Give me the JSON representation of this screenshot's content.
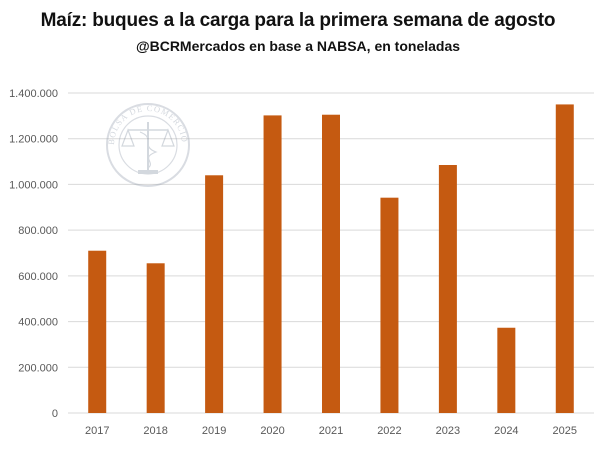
{
  "chart_data": {
    "type": "bar",
    "title": "Maíz: buques a la carga para la primera semana de agosto",
    "subtitle": "@BCRMercados en base a NABSA, en toneladas",
    "categories": [
      "2017",
      "2018",
      "2019",
      "2020",
      "2021",
      "2022",
      "2023",
      "2024",
      "2025"
    ],
    "values": [
      710000,
      655000,
      1040000,
      1302000,
      1305000,
      942000,
      1085000,
      373000,
      1350000
    ],
    "ylim": [
      0,
      1400000
    ],
    "yticks": [
      0,
      200000,
      400000,
      600000,
      800000,
      1000000,
      1200000,
      1400000
    ],
    "ytick_labels": [
      "0",
      "200.000",
      "400.000",
      "600.000",
      "800.000",
      "1.000.000",
      "1.200.000",
      "1.400.000"
    ],
    "xlabel": "",
    "ylabel": "",
    "grid": true,
    "legend": "none",
    "bar_color": "#C55A11",
    "grid_color": "#D9D9D9",
    "watermark": {
      "icon": "bolsa-de-comercio-seal-icon",
      "text": "BOLSA DE COMERCIO DE ROSARIO"
    }
  }
}
